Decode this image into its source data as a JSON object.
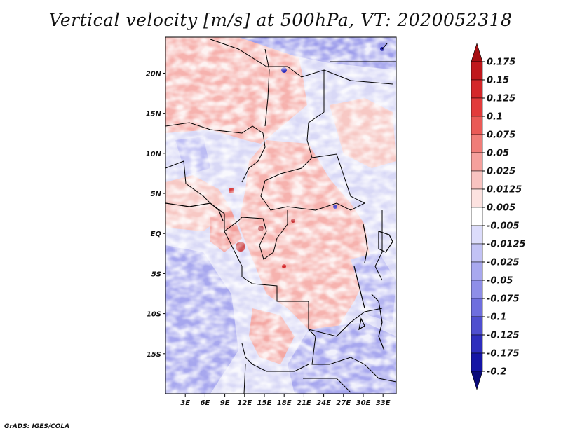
{
  "title": "Vertical velocity [m/s] at 500hPa, VT: 2020052318",
  "credit": "GrADS: IGES/COLA",
  "chart_data": {
    "type": "heatmap",
    "variable": "Vertical velocity",
    "units": "m/s",
    "level": "500hPa",
    "valid_time": "2020052318",
    "lat_range": [
      -20,
      24.5
    ],
    "lon_range": [
      0,
      35
    ],
    "lat_ticks": [
      {
        "value": 20,
        "label": "20N"
      },
      {
        "value": 15,
        "label": "15N"
      },
      {
        "value": 10,
        "label": "10N"
      },
      {
        "value": 5,
        "label": "5N"
      },
      {
        "value": 0,
        "label": "EQ"
      },
      {
        "value": -5,
        "label": "5S"
      },
      {
        "value": -10,
        "label": "10S"
      },
      {
        "value": -15,
        "label": "15S"
      }
    ],
    "lon_ticks": [
      {
        "value": 3,
        "label": "3E"
      },
      {
        "value": 6,
        "label": "6E"
      },
      {
        "value": 9,
        "label": "9E"
      },
      {
        "value": 12,
        "label": "12E"
      },
      {
        "value": 15,
        "label": "15E"
      },
      {
        "value": 18,
        "label": "18E"
      },
      {
        "value": 21,
        "label": "21E"
      },
      {
        "value": 24,
        "label": "24E"
      },
      {
        "value": 27,
        "label": "27E"
      },
      {
        "value": 30,
        "label": "30E"
      },
      {
        "value": 33,
        "label": "33E"
      }
    ],
    "colorbar": {
      "levels": [
        "0.175",
        "0.15",
        "0.125",
        "0.1",
        "0.075",
        "0.05",
        "0.025",
        "0.0125",
        "0.005",
        "-0.005",
        "-0.0125",
        "-0.025",
        "-0.05",
        "-0.075",
        "-0.1",
        "-0.125",
        "-0.175",
        "-0.2"
      ],
      "colors": [
        "#a50e12",
        "#c0181c",
        "#d4282a",
        "#e23b3b",
        "#ea5a56",
        "#f07d78",
        "#f5a09c",
        "#f9c3c0",
        "#fce2e0",
        "#ffffff",
        "#dcdcfb",
        "#c2c2f5",
        "#a8a8ef",
        "#8e8ee8",
        "#6e6ede",
        "#4e4ecf",
        "#2d2dbd",
        "#1414a5",
        "#0a0a7a"
      ]
    }
  }
}
